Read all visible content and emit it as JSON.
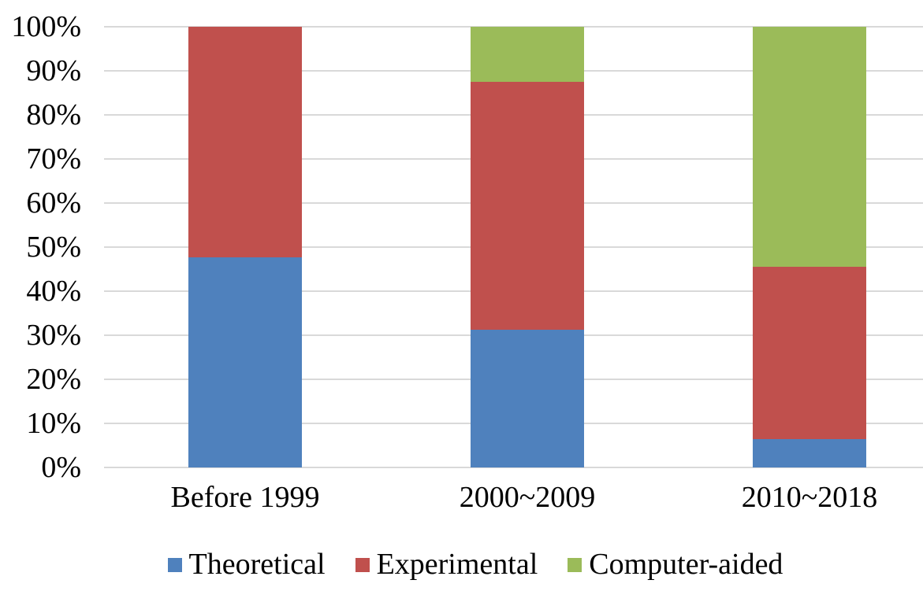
{
  "chart_data": {
    "type": "bar",
    "stacked": true,
    "percent_stacked": true,
    "title": "",
    "xlabel": "",
    "ylabel": "",
    "categories": [
      "Before 1999",
      "2000~2009",
      "2010~2018"
    ],
    "series": [
      {
        "name": "Theoretical",
        "color": "#4F81BD",
        "values": [
          47.6,
          31.3,
          6.4
        ]
      },
      {
        "name": "Experimental",
        "color": "#C0504D",
        "values": [
          52.4,
          56.2,
          39.1
        ]
      },
      {
        "name": "Computer-aided",
        "color": "#9BBB59",
        "values": [
          0,
          12.5,
          54.5
        ]
      }
    ],
    "y_axis": {
      "min": 0,
      "max": 100,
      "step": 10,
      "tick_labels": [
        "0%",
        "10%",
        "20%",
        "30%",
        "40%",
        "50%",
        "60%",
        "70%",
        "80%",
        "90%",
        "100%"
      ]
    },
    "grid": true,
    "gridline_color": "#D9D9D9",
    "legend_position": "bottom",
    "background_color": "#FFFFFF",
    "text_color": "#000000"
  }
}
